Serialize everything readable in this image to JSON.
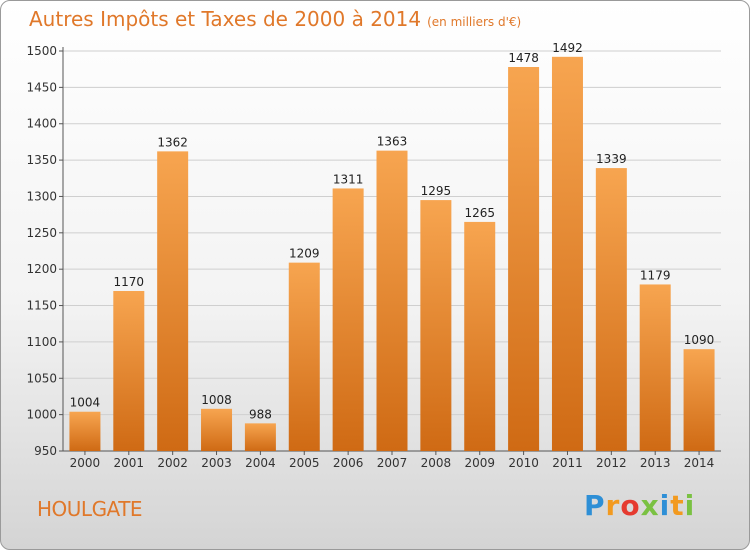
{
  "title": "Autres Impôts et Taxes de 2000 à 2014",
  "subtitle": "(en milliers d'€)",
  "city": "HOULGATE",
  "logo": {
    "letters": [
      "P",
      "r",
      "o",
      "x",
      "i",
      "t",
      "i"
    ],
    "colors": [
      "#2e8fd6",
      "#f29a1f",
      "#e53a2f",
      "#7ac142",
      "#2e8fd6",
      "#f29a1f",
      "#7ac142"
    ]
  },
  "colors": {
    "bar_top": "#f7a550",
    "bar_bottom": "#cf6a14",
    "text": "#e0782a",
    "grid": "#cfcfcf"
  },
  "chart_data": {
    "type": "bar",
    "categories": [
      "2000",
      "2001",
      "2002",
      "2003",
      "2004",
      "2005",
      "2006",
      "2007",
      "2008",
      "2009",
      "2010",
      "2011",
      "2012",
      "2013",
      "2014"
    ],
    "values": [
      1004,
      1170,
      1362,
      1008,
      988,
      1209,
      1311,
      1363,
      1295,
      1265,
      1478,
      1492,
      1339,
      1179,
      1090
    ],
    "ylim": [
      950,
      1500
    ],
    "yticks": [
      950,
      1000,
      1050,
      1100,
      1150,
      1200,
      1250,
      1300,
      1350,
      1400,
      1450,
      1500
    ],
    "grid": true,
    "title": "Autres Impôts et Taxes de 2000 à 2014",
    "xlabel": "",
    "ylabel": ""
  }
}
